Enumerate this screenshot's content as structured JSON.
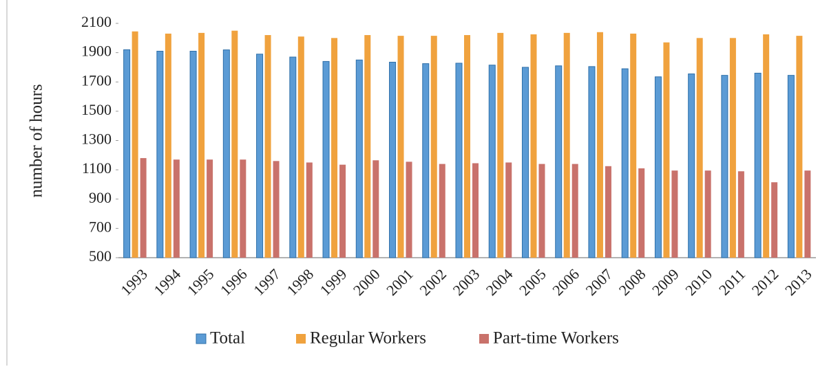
{
  "chart_data": {
    "type": "bar",
    "y_label": "number of hours",
    "categories": [
      "1993",
      "1994",
      "1995",
      "1996",
      "1997",
      "1998",
      "1999",
      "2000",
      "2001",
      "2002",
      "2003",
      "2004",
      "2005",
      "2006",
      "2007",
      "2008",
      "2009",
      "2010",
      "2011",
      "2012",
      "2013"
    ],
    "series": [
      {
        "name": "Total",
        "color": "#5b9bd5",
        "values": [
          1920,
          1910,
          1910,
          1919,
          1890,
          1870,
          1840,
          1850,
          1835,
          1825,
          1828,
          1815,
          1800,
          1810,
          1805,
          1790,
          1735,
          1755,
          1745,
          1760,
          1745
        ]
      },
      {
        "name": "Regular Workers",
        "color": "#f0a23e",
        "values": [
          2045,
          2030,
          2035,
          2050,
          2020,
          2010,
          2000,
          2020,
          2015,
          2015,
          2020,
          2035,
          2025,
          2035,
          2040,
          2030,
          1970,
          2000,
          2000,
          2025,
          2015
        ]
      },
      {
        "name": "Part-time Workers",
        "color": "#c9726b",
        "values": [
          1180,
          1170,
          1170,
          1170,
          1160,
          1150,
          1135,
          1165,
          1155,
          1140,
          1145,
          1150,
          1140,
          1140,
          1125,
          1110,
          1095,
          1095,
          1090,
          1015,
          1095
        ]
      }
    ],
    "ylim": [
      500,
      2100
    ],
    "yticks": [
      500,
      700,
      900,
      1100,
      1300,
      1500,
      1700,
      1900,
      2100
    ],
    "grid": false,
    "legend": "bottom"
  }
}
